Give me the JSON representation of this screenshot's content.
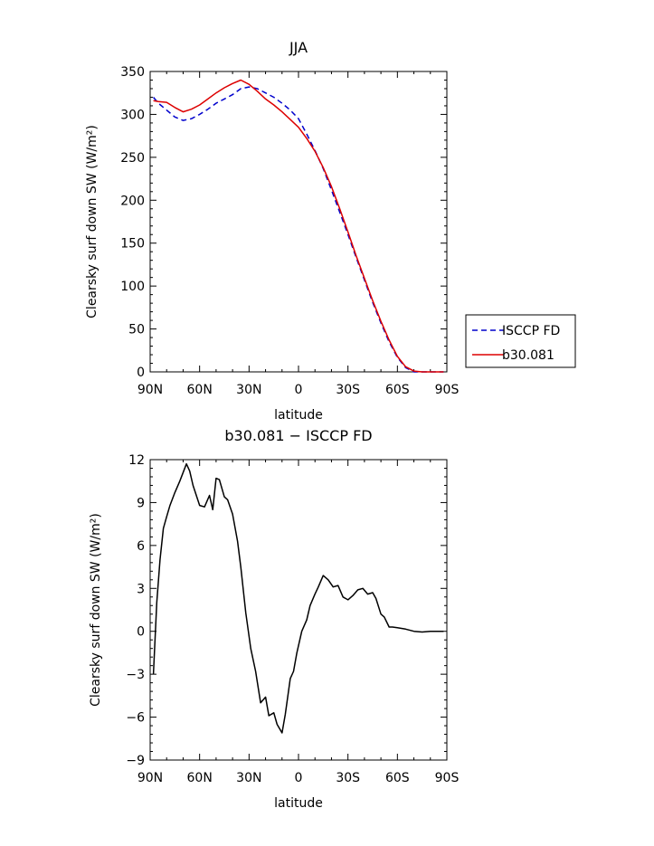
{
  "chart_data": [
    {
      "type": "line",
      "title": "JJA",
      "xlabel": "latitude",
      "ylabel": "Clearsky surf down SW (W/m²)",
      "ylim": [
        0,
        350
      ],
      "yticks": [
        0,
        50,
        100,
        150,
        200,
        250,
        300,
        350
      ],
      "xlim": [
        90,
        -90
      ],
      "xticks": [
        90,
        60,
        30,
        0,
        -30,
        -60,
        -90
      ],
      "xtick_labels": [
        "90N",
        "60N",
        "30N",
        "0",
        "30S",
        "60S",
        "90S"
      ],
      "grid": false,
      "legend_position": "right",
      "series": [
        {
          "name": "ISCCP FD",
          "color": "#0000cc",
          "dash": "dashed",
          "x": [
            88,
            85,
            80,
            75,
            70,
            65,
            60,
            55,
            50,
            45,
            40,
            35,
            30,
            25,
            20,
            15,
            10,
            5,
            0,
            -5,
            -10,
            -15,
            -20,
            -25,
            -30,
            -35,
            -40,
            -45,
            -50,
            -55,
            -60,
            -65,
            -70,
            -75,
            -80,
            -85,
            -88
          ],
          "values": [
            320,
            313,
            305,
            297,
            293,
            295,
            300,
            306,
            313,
            318,
            323,
            330,
            332,
            330,
            325,
            320,
            313,
            305,
            295,
            277,
            258,
            237,
            212,
            186,
            160,
            133,
            107,
            81,
            57,
            35,
            17,
            5,
            0,
            0,
            0,
            0,
            0
          ]
        },
        {
          "name": "b30.081",
          "color": "#dd0000",
          "dash": "solid",
          "x": [
            88,
            85,
            80,
            75,
            70,
            65,
            60,
            55,
            50,
            45,
            40,
            35,
            30,
            25,
            20,
            15,
            10,
            5,
            0,
            -5,
            -10,
            -15,
            -20,
            -25,
            -30,
            -35,
            -40,
            -45,
            -50,
            -55,
            -60,
            -65,
            -70,
            -75,
            -80,
            -85,
            -88
          ],
          "values": [
            316,
            315,
            314,
            308,
            303,
            306,
            311,
            318,
            325,
            331,
            336,
            340,
            335,
            327,
            318,
            311,
            303,
            294,
            285,
            272,
            257,
            238,
            216,
            190,
            163,
            135,
            109,
            83,
            59,
            37,
            18,
            6,
            1,
            0,
            0,
            0,
            0
          ]
        }
      ]
    },
    {
      "type": "line",
      "title": "b30.081 − ISCCP FD",
      "xlabel": "latitude",
      "ylabel": "Clearsky surf down SW (W/m²)",
      "ylim": [
        -9,
        12
      ],
      "yticks": [
        -9,
        -6,
        -3,
        0,
        3,
        6,
        9,
        12
      ],
      "xlim": [
        90,
        -90
      ],
      "xticks": [
        90,
        60,
        30,
        0,
        -30,
        -60,
        -90
      ],
      "xtick_labels": [
        "90N",
        "60N",
        "30N",
        "0",
        "30S",
        "60S",
        "90S"
      ],
      "grid": false,
      "series": [
        {
          "color": "#000000",
          "dash": "solid",
          "x": [
            88,
            86,
            84,
            82,
            80,
            78,
            75,
            72,
            68,
            66,
            64,
            60,
            57,
            54,
            52,
            50,
            48,
            45,
            43,
            40,
            37,
            35,
            32,
            29,
            26,
            23,
            20,
            18,
            15,
            13,
            10,
            8,
            5,
            3,
            1,
            -2,
            -5,
            -7,
            -10,
            -12,
            -15,
            -18,
            -21,
            -24,
            -27,
            -30,
            -33,
            -36,
            -39,
            -42,
            -45,
            -47,
            -50,
            -52,
            -55,
            -57,
            -60,
            -65,
            -70,
            -75,
            -80,
            -85,
            -88
          ],
          "values": [
            -3.0,
            2.0,
            5.0,
            7.2,
            8.0,
            8.8,
            9.7,
            10.5,
            11.7,
            11.2,
            10.2,
            8.8,
            8.7,
            9.5,
            8.5,
            10.7,
            10.6,
            9.4,
            9.2,
            8.2,
            6.3,
            4.5,
            1.3,
            -1.2,
            -2.8,
            -5.0,
            -4.6,
            -5.9,
            -5.7,
            -6.5,
            -7.1,
            -5.8,
            -3.3,
            -2.8,
            -1.5,
            0.0,
            0.8,
            1.8,
            2.6,
            3.1,
            3.9,
            3.6,
            3.1,
            3.2,
            2.4,
            2.2,
            2.5,
            2.9,
            3.0,
            2.6,
            2.7,
            2.3,
            1.2,
            1.0,
            0.3,
            0.3,
            0.25,
            0.15,
            0.0,
            -0.05,
            0.0,
            0.0,
            0.0
          ]
        }
      ]
    }
  ]
}
